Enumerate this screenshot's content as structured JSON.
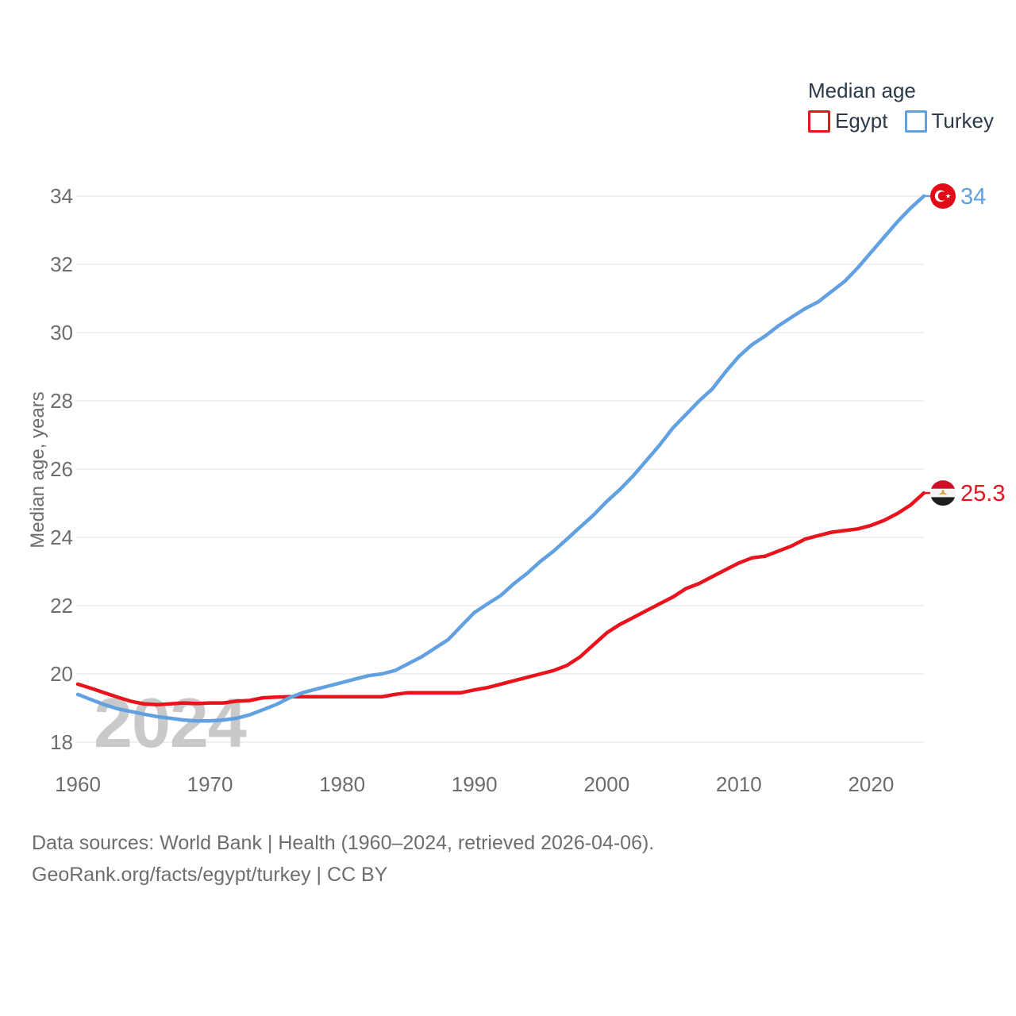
{
  "legend": {
    "title": "Median age",
    "series": [
      {
        "label": "Egypt",
        "color": "#e8131d"
      },
      {
        "label": "Turkey",
        "color": "#61a0e1"
      }
    ]
  },
  "source": {
    "line1": "Data sources: World Bank | Health (1960–2024, retrieved 2026-04-06).",
    "line2": "GeoRank.org/facts/egypt/turkey | CC BY"
  },
  "watermark": "2024",
  "colors": {
    "egypt_line": "#e8131d",
    "turkey_line": "#61a0e1",
    "grid": "#ebebeb",
    "axis_text": "#6d6d6d",
    "watermark": "#c9c9c9",
    "legend_text": "#2b3949",
    "turkey_flag_red": "#e30a17",
    "egypt_flag_red": "#ce1126",
    "egypt_flag_black": "#1d1d1b",
    "egypt_flag_gold": "#d99a2b"
  },
  "chart_data": {
    "type": "line",
    "title": "Median age",
    "ylabel": "Median age, years",
    "xlabel": "",
    "ylim": [
      18,
      34
    ],
    "yticks": [
      18,
      20,
      22,
      24,
      26,
      28,
      30,
      32,
      34
    ],
    "xticks": [
      1960,
      1970,
      1980,
      1990,
      2000,
      2010,
      2020
    ],
    "grid": true,
    "legend_position": "top-right",
    "x": [
      1960,
      1961,
      1962,
      1963,
      1964,
      1965,
      1966,
      1967,
      1968,
      1969,
      1970,
      1971,
      1972,
      1973,
      1974,
      1975,
      1976,
      1977,
      1978,
      1979,
      1980,
      1981,
      1982,
      1983,
      1984,
      1985,
      1986,
      1987,
      1988,
      1989,
      1990,
      1991,
      1992,
      1993,
      1994,
      1995,
      1996,
      1997,
      1998,
      1999,
      2000,
      2001,
      2002,
      2003,
      2004,
      2005,
      2006,
      2007,
      2008,
      2009,
      2010,
      2011,
      2012,
      2013,
      2014,
      2015,
      2016,
      2017,
      2018,
      2019,
      2020,
      2021,
      2022,
      2023,
      2024
    ],
    "series": [
      {
        "name": "Egypt",
        "color": "#e8131d",
        "end_label": "25.3",
        "flag_icon": "egypt-flag-icon",
        "values": [
          19.7,
          19.58,
          19.45,
          19.32,
          19.2,
          19.12,
          19.1,
          19.12,
          19.15,
          19.13,
          19.15,
          19.15,
          19.2,
          19.22,
          19.3,
          19.32,
          19.33,
          19.33,
          19.33,
          19.33,
          19.33,
          19.33,
          19.33,
          19.33,
          19.4,
          19.45,
          19.45,
          19.45,
          19.45,
          19.45,
          19.53,
          19.6,
          19.7,
          19.8,
          19.9,
          20.0,
          20.1,
          20.25,
          20.5,
          20.85,
          21.2,
          21.45,
          21.65,
          21.85,
          22.05,
          22.25,
          22.5,
          22.65,
          22.85,
          23.05,
          23.25,
          23.4,
          23.45,
          23.6,
          23.75,
          23.95,
          24.05,
          24.15,
          24.2,
          24.25,
          24.35,
          24.5,
          24.7,
          24.95,
          25.3
        ]
      },
      {
        "name": "Turkey",
        "color": "#61a0e1",
        "end_label": "34",
        "flag_icon": "turkey-flag-icon",
        "values": [
          19.4,
          19.25,
          19.1,
          18.98,
          18.9,
          18.82,
          18.75,
          18.7,
          18.65,
          18.62,
          18.62,
          18.65,
          18.7,
          18.8,
          18.95,
          19.1,
          19.3,
          19.45,
          19.55,
          19.65,
          19.75,
          19.85,
          19.95,
          20.0,
          20.1,
          20.3,
          20.5,
          20.75,
          21.0,
          21.4,
          21.8,
          22.05,
          22.3,
          22.65,
          22.95,
          23.3,
          23.6,
          23.95,
          24.3,
          24.65,
          25.05,
          25.4,
          25.8,
          26.25,
          26.7,
          27.2,
          27.6,
          28.0,
          28.35,
          28.85,
          29.3,
          29.65,
          29.9,
          30.2,
          30.45,
          30.7,
          30.9,
          31.2,
          31.5,
          31.9,
          32.35,
          32.8,
          33.25,
          33.65,
          34.0
        ]
      }
    ]
  }
}
